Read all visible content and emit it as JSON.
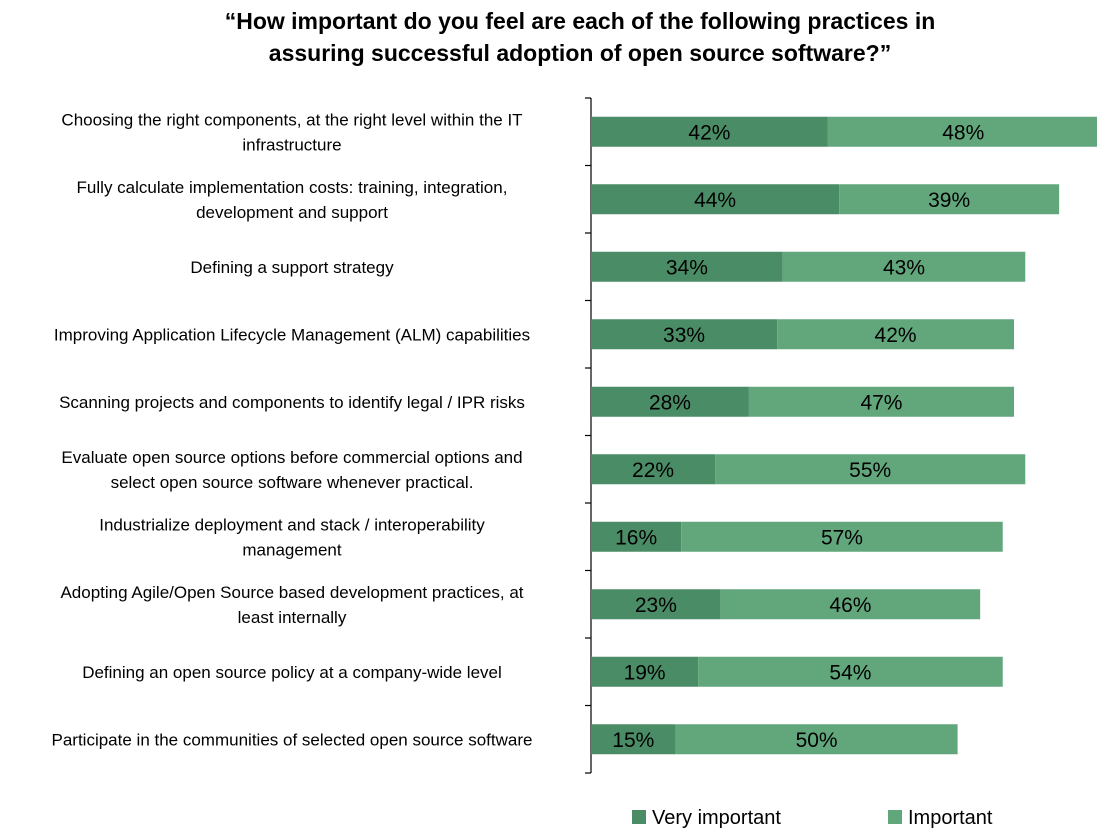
{
  "chart_data": {
    "type": "bar",
    "orientation": "horizontal",
    "stacked": true,
    "title_lines": [
      "“How important do you feel are each of the following practices in",
      "assuring successful adoption of open source software?”"
    ],
    "categories": [
      [
        "Choosing the right components, at the right level within the IT",
        "infrastructure"
      ],
      [
        "Fully calculate implementation costs: training, integration,",
        "development and support"
      ],
      [
        "Defining a support strategy"
      ],
      [
        "Improving Application Lifecycle Management (ALM) capabilities"
      ],
      [
        "Scanning projects and components to identify legal / IPR risks"
      ],
      [
        "Evaluate open source options before commercial options and",
        "select open source software whenever practical."
      ],
      [
        "Industrialize deployment and stack / interoperability",
        "management"
      ],
      [
        "Adopting Agile/Open Source based development practices, at",
        "least internally"
      ],
      [
        "Defining an open source policy at a company-wide level"
      ],
      [
        "Participate in the communities of selected open source software"
      ]
    ],
    "series": [
      {
        "name": "Very important",
        "color": "#4a8c66",
        "values": [
          42,
          44,
          34,
          33,
          28,
          22,
          16,
          23,
          19,
          15
        ]
      },
      {
        "name": "Important",
        "color": "#62a67c",
        "values": [
          48,
          39,
          43,
          42,
          47,
          55,
          57,
          46,
          54,
          50
        ]
      }
    ],
    "value_suffix": "%",
    "xlim": [
      0,
      90
    ],
    "grid": false,
    "legend_position": "bottom"
  }
}
